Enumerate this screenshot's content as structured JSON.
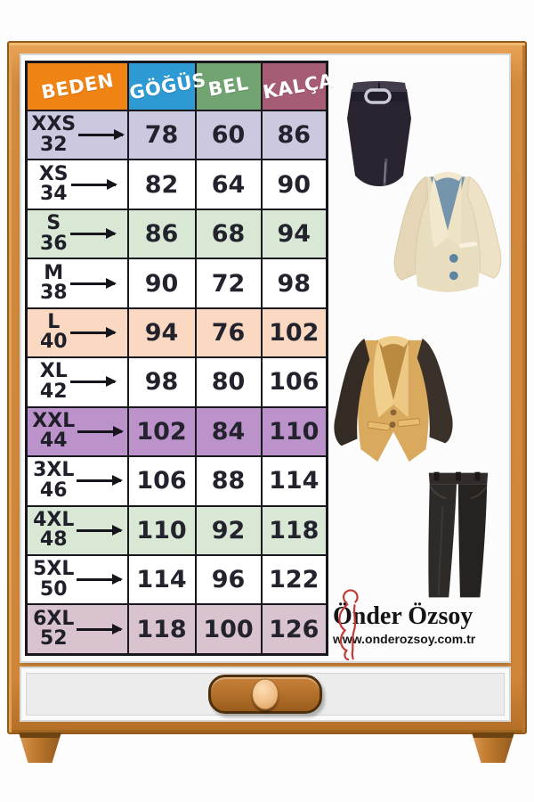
{
  "size_chart": {
    "headers": [
      {
        "label": "BEDEN",
        "bg": "#EF8414"
      },
      {
        "label": "GÖĞÜS",
        "bg": "#2D9AD4"
      },
      {
        "label": "BEL",
        "bg": "#72A471"
      },
      {
        "label": "KALÇA",
        "bg": "#A75C76"
      }
    ],
    "rows": [
      {
        "size": "XXS",
        "num": "32",
        "gogus": "78",
        "bel": "60",
        "kalca": "86",
        "bg": "#CBC8E0"
      },
      {
        "size": "XS",
        "num": "34",
        "gogus": "82",
        "bel": "64",
        "kalca": "90",
        "bg": "#FFFFFF"
      },
      {
        "size": "S",
        "num": "36",
        "gogus": "86",
        "bel": "68",
        "kalca": "94",
        "bg": "#D9E8D4"
      },
      {
        "size": "M",
        "num": "38",
        "gogus": "90",
        "bel": "72",
        "kalca": "98",
        "bg": "#FFFFFF"
      },
      {
        "size": "L",
        "num": "40",
        "gogus": "94",
        "bel": "76",
        "kalca": "102",
        "bg": "#FAD8C2"
      },
      {
        "size": "XL",
        "num": "42",
        "gogus": "98",
        "bel": "80",
        "kalca": "106",
        "bg": "#FFFFFF"
      },
      {
        "size": "XXL",
        "num": "44",
        "gogus": "102",
        "bel": "84",
        "kalca": "110",
        "bg": "#BC92CA"
      },
      {
        "size": "3XL",
        "num": "46",
        "gogus": "106",
        "bel": "88",
        "kalca": "114",
        "bg": "#FFFFFF"
      },
      {
        "size": "4XL",
        "num": "48",
        "gogus": "110",
        "bel": "92",
        "kalca": "118",
        "bg": "#D9E8D4"
      },
      {
        "size": "5XL",
        "num": "50",
        "gogus": "114",
        "bel": "96",
        "kalca": "122",
        "bg": "#FFFFFF"
      },
      {
        "size": "6XL",
        "num": "52",
        "gogus": "118",
        "bel": "100",
        "kalca": "126",
        "bg": "#D9C3CF"
      }
    ],
    "arrow_icon": "right-arrow"
  },
  "brand": {
    "name": "Önder Özsoy",
    "website": "www.onderozsoy.com.tr",
    "logo_icon": "woman-silhouette",
    "logo_color": "#C23A36"
  },
  "illustrations": {
    "items": [
      "skirt-illustration",
      "cream-jacket-illustration",
      "tan-blazer-illustration",
      "trousers-illustration"
    ]
  },
  "colors": {
    "wood": "#CF8639",
    "wood_dark": "#95591B",
    "table_border": "#17171D",
    "drawer_panel": "#ECECEC",
    "handle": "#B06E28",
    "knob": "#F0BE88"
  }
}
